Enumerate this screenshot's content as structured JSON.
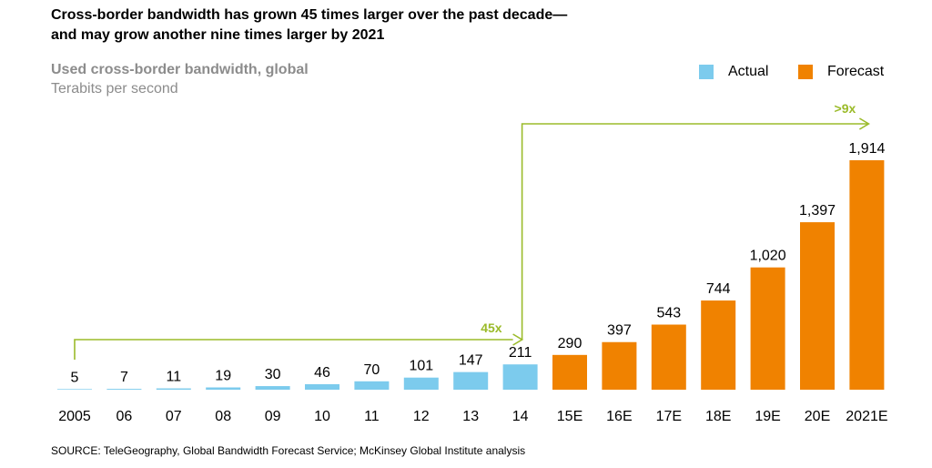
{
  "chart_data": {
    "type": "bar",
    "title": "Cross-border bandwidth has grown 45 times larger over the past decade—\nand may grow another nine times larger by 2021",
    "subtitle": "Used cross-border bandwidth, global",
    "ylabel": "Terabits per second",
    "categories": [
      "2005",
      "06",
      "07",
      "08",
      "09",
      "10",
      "11",
      "12",
      "13",
      "14",
      "15E",
      "16E",
      "17E",
      "18E",
      "19E",
      "20E",
      "2021E"
    ],
    "values": [
      5,
      7,
      11,
      19,
      30,
      46,
      70,
      101,
      147,
      211,
      290,
      397,
      543,
      744,
      1020,
      1397,
      1914
    ],
    "value_labels": [
      "5",
      "7",
      "11",
      "19",
      "30",
      "46",
      "70",
      "101",
      "147",
      "211",
      "290",
      "397",
      "543",
      "744",
      "1,020",
      "1,397",
      "1,914"
    ],
    "series": [
      {
        "name": "Actual",
        "color": "#7ccbed",
        "range": [
          0,
          9
        ]
      },
      {
        "name": "Forecast",
        "color": "#f08200",
        "range": [
          10,
          16
        ]
      }
    ],
    "ylim": [
      0,
      1914
    ],
    "legend_position": "top-right",
    "grid": false,
    "annotations": [
      {
        "text": "45x",
        "from_category": "2005",
        "to_category": "14",
        "color": "#9bbb2a"
      },
      {
        "text": ">9x",
        "from_category": "14",
        "to_category": "2021E",
        "color": "#9bbb2a"
      }
    ]
  },
  "source": "SOURCE:  TeleGeography, Global Bandwidth Forecast Service; McKinsey Global Institute analysis"
}
